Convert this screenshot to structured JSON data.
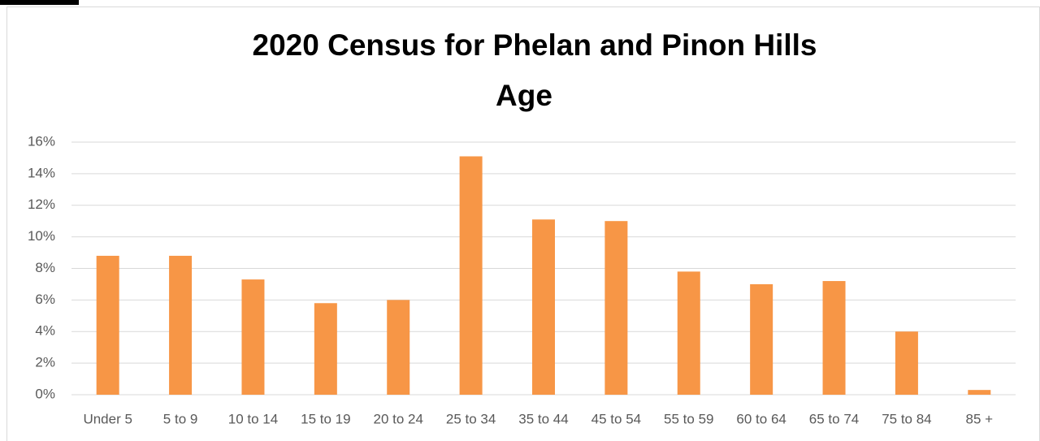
{
  "chart_data": {
    "type": "bar",
    "title": "2020 Census for Phelan and Pinon Hills",
    "subtitle": "Age",
    "categories": [
      "Under 5",
      "5 to 9",
      "10 to 14",
      "15 to 19",
      "20 to 24",
      "25 to 34",
      "35 to 44",
      "45 to 54",
      "55 to 59",
      "60 to 64",
      "65 to 74",
      "75 to 84",
      "85 +"
    ],
    "values": [
      8.8,
      8.8,
      7.3,
      5.8,
      6.0,
      15.1,
      11.1,
      11.0,
      7.8,
      7.0,
      7.2,
      4.0,
      0.3
    ],
    "color": "#f79646",
    "ylim": [
      0,
      16
    ],
    "yticks": [
      {
        "value": 0,
        "label": "0%"
      },
      {
        "value": 2,
        "label": "2%"
      },
      {
        "value": 4,
        "label": "4%"
      },
      {
        "value": 6,
        "label": "6%"
      },
      {
        "value": 8,
        "label": "8%"
      },
      {
        "value": 10,
        "label": "10%"
      },
      {
        "value": 12,
        "label": "12%"
      },
      {
        "value": 14,
        "label": "14%"
      },
      {
        "value": 16,
        "label": "16%"
      }
    ],
    "grid": true
  }
}
